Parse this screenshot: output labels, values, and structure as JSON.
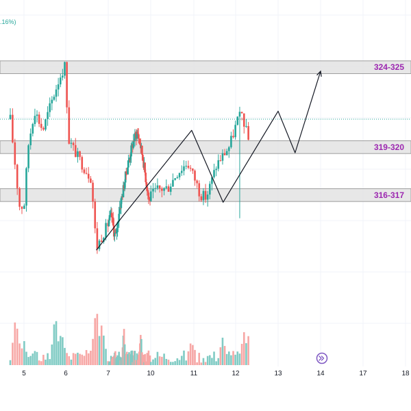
{
  "chart_data": {
    "type": "candlestick",
    "header_fragment": ".16%)",
    "x_ticks": [
      "5",
      "6",
      "7",
      "10",
      "11",
      "12",
      "13",
      "14",
      "17",
      "18"
    ],
    "price_range": [
      312,
      327
    ],
    "zones": [
      {
        "label": "324-325",
        "low": 324,
        "high": 325
      },
      {
        "label": "319-320",
        "low": 319,
        "high": 320
      },
      {
        "label": "316-317",
        "low": 316,
        "high": 317
      }
    ],
    "current_price": 321.7,
    "projection_path": [
      [
        6.72,
        313.5
      ],
      [
        8.0,
        315.6
      ],
      [
        10.95,
        321.0
      ],
      [
        11.7,
        316.5
      ],
      [
        13.0,
        322.2
      ],
      [
        13.4,
        319.6
      ],
      [
        14.2,
        324.7
      ]
    ],
    "colors": {
      "up": "#26a69a",
      "down": "#ef5350",
      "vol_up": "#80cbc4",
      "vol_down": "#f7a7a5",
      "zone_fill": "#e3e3e3",
      "zone_border": "#9e9e9e",
      "zone_text": "#9c27b0",
      "grid": "#f0f3fa",
      "price_line": "#26a69a"
    },
    "replay_icon": "fast-forward-circle-icon"
  }
}
